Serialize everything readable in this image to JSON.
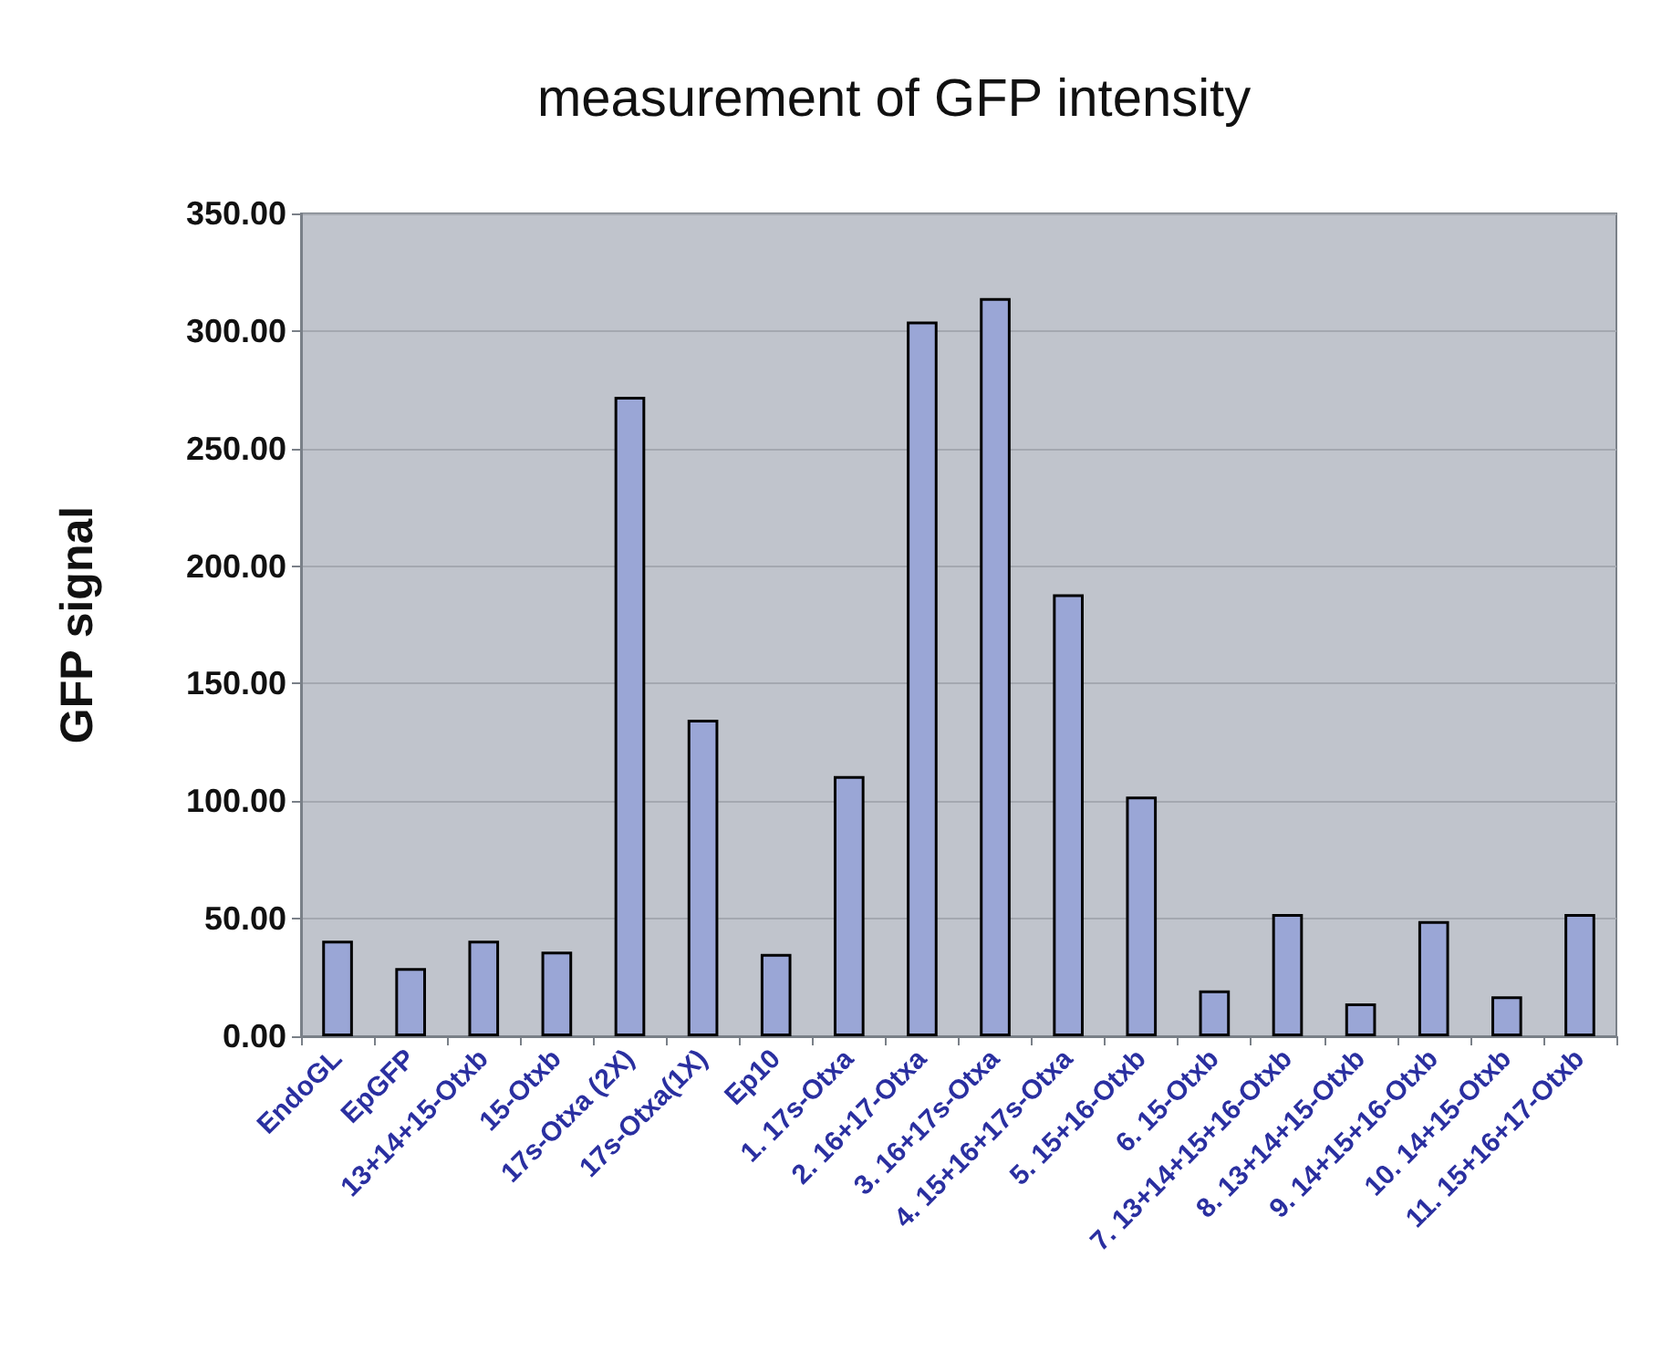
{
  "chart_data": {
    "type": "bar",
    "title": "measurement of GFP intensity",
    "ylabel": "GFP signal",
    "categories": [
      "EndoGL",
      "EpGFP",
      "13+14+15-Otxb",
      "15-Otxb",
      "17s-Otxa (2X)",
      "17s-Otxa(1X)",
      "Ep10",
      "1. 17s-Otxa",
      "2. 16+17-Otxa",
      "3. 16+17s-Otxa",
      "4. 15+16+17s-Otxa",
      "5. 15+16-Otxb",
      "6. 15-Otxb",
      "7. 13+14+15+16-Otxb",
      "8. 13+14+15-Otxb",
      "9. 14+15+16-Otxb",
      "10. 14+15-Otxb",
      "11. 15+16+17-Otxb"
    ],
    "values": [
      40.6,
      29,
      40.6,
      36,
      272,
      134.6,
      35,
      110.7,
      304,
      314,
      188,
      102,
      19.5,
      52,
      14,
      49,
      17,
      52
    ],
    "color": "#9aa6d6",
    "ylim": [
      0,
      350
    ],
    "yticks": [
      {
        "value": 0,
        "label": "0.00"
      },
      {
        "value": 50,
        "label": "50.00"
      },
      {
        "value": 100,
        "label": "100.00"
      },
      {
        "value": 150,
        "label": "150.00"
      },
      {
        "value": 200,
        "label": "200.00"
      },
      {
        "value": 250,
        "label": "250.00"
      },
      {
        "value": 300,
        "label": "300.00"
      },
      {
        "value": 350,
        "label": "350.00"
      }
    ],
    "grid": "y"
  }
}
